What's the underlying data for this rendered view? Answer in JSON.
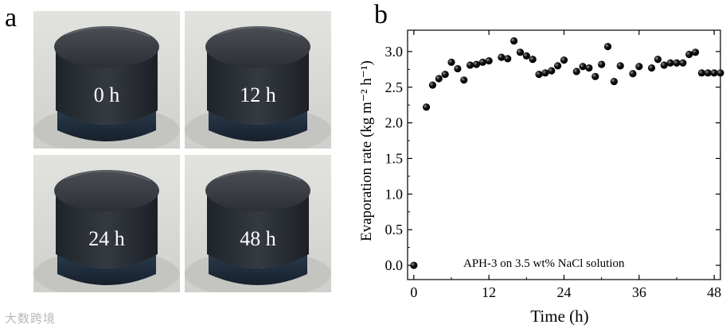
{
  "panel_a": {
    "letter": "a",
    "photos": [
      {
        "label": "0 h"
      },
      {
        "label": "12 h"
      },
      {
        "label": "24 h"
      },
      {
        "label": "48 h"
      }
    ]
  },
  "panel_b": {
    "letter": "b"
  },
  "watermark": "大数跨境",
  "chart_data": {
    "type": "scatter",
    "title": "",
    "xlabel": "Time (h)",
    "ylabel": "Evaporation rate (kg m⁻² h⁻¹)",
    "annotation": "APH-3 on 3.5 wt% NaCl solution",
    "xlim": [
      -1,
      49
    ],
    "ylim": [
      -0.2,
      3.3
    ],
    "xticks": [
      0,
      12,
      24,
      36,
      48
    ],
    "yticks": [
      0.0,
      0.5,
      1.0,
      1.5,
      2.0,
      2.5,
      3.0
    ],
    "ytick_labels": [
      "0.0",
      "0.5",
      "1.0",
      "1.5",
      "2.0",
      "2.5",
      "3.0"
    ],
    "grid": false,
    "legend": "none",
    "marker_color": "#111111",
    "series": [
      {
        "x": [
          0,
          2,
          3,
          4,
          5,
          6,
          7,
          8,
          9,
          10,
          11,
          12,
          14,
          15,
          16,
          17,
          18,
          19,
          20,
          21,
          22,
          23,
          24,
          26,
          27,
          28,
          29,
          30,
          31,
          32,
          33,
          35,
          36,
          38,
          39,
          40,
          41,
          42,
          43,
          44,
          45,
          46,
          47,
          48,
          49
        ],
        "y": [
          0.0,
          2.22,
          2.53,
          2.62,
          2.68,
          2.85,
          2.76,
          2.6,
          2.81,
          2.82,
          2.85,
          2.87,
          2.92,
          2.9,
          3.15,
          2.99,
          2.94,
          2.89,
          2.68,
          2.7,
          2.73,
          2.8,
          2.88,
          2.72,
          2.79,
          2.77,
          2.65,
          2.82,
          3.07,
          2.58,
          2.8,
          2.69,
          2.79,
          2.77,
          2.89,
          2.81,
          2.84,
          2.84,
          2.84,
          2.96,
          2.99,
          2.7,
          2.7,
          2.7,
          2.7
        ]
      }
    ]
  }
}
